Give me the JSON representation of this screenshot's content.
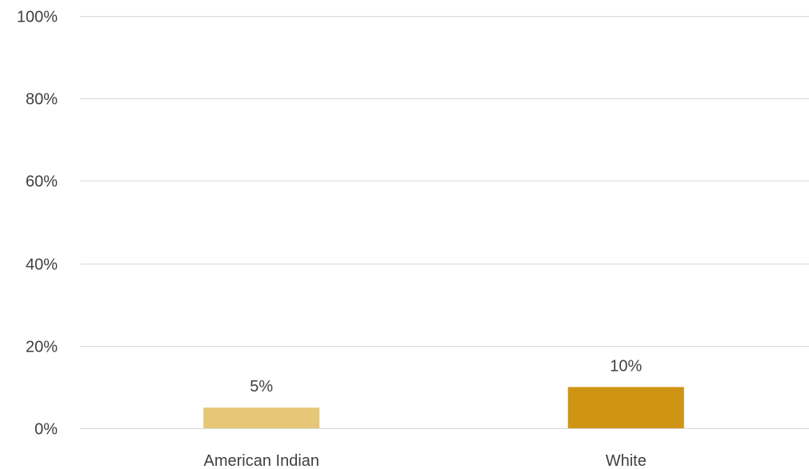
{
  "chart_data": {
    "type": "bar",
    "title": "",
    "xlabel": "",
    "ylabel": "",
    "categories": [
      "American Indian",
      "White"
    ],
    "values": [
      0.05,
      0.1
    ],
    "data_labels": [
      "5%",
      "10%"
    ],
    "ylim": [
      0,
      1
    ],
    "yticks": [
      0,
      0.2,
      0.4,
      0.6,
      0.8,
      1.0
    ],
    "ytick_labels": [
      "0%",
      "20%",
      "40%",
      "60%",
      "80%",
      "100%"
    ],
    "grid": true,
    "legend": "none",
    "colors": [
      "#E6C677",
      "#D09414"
    ],
    "gridline_color": "#D9D9D9",
    "text_color": "#404040"
  }
}
